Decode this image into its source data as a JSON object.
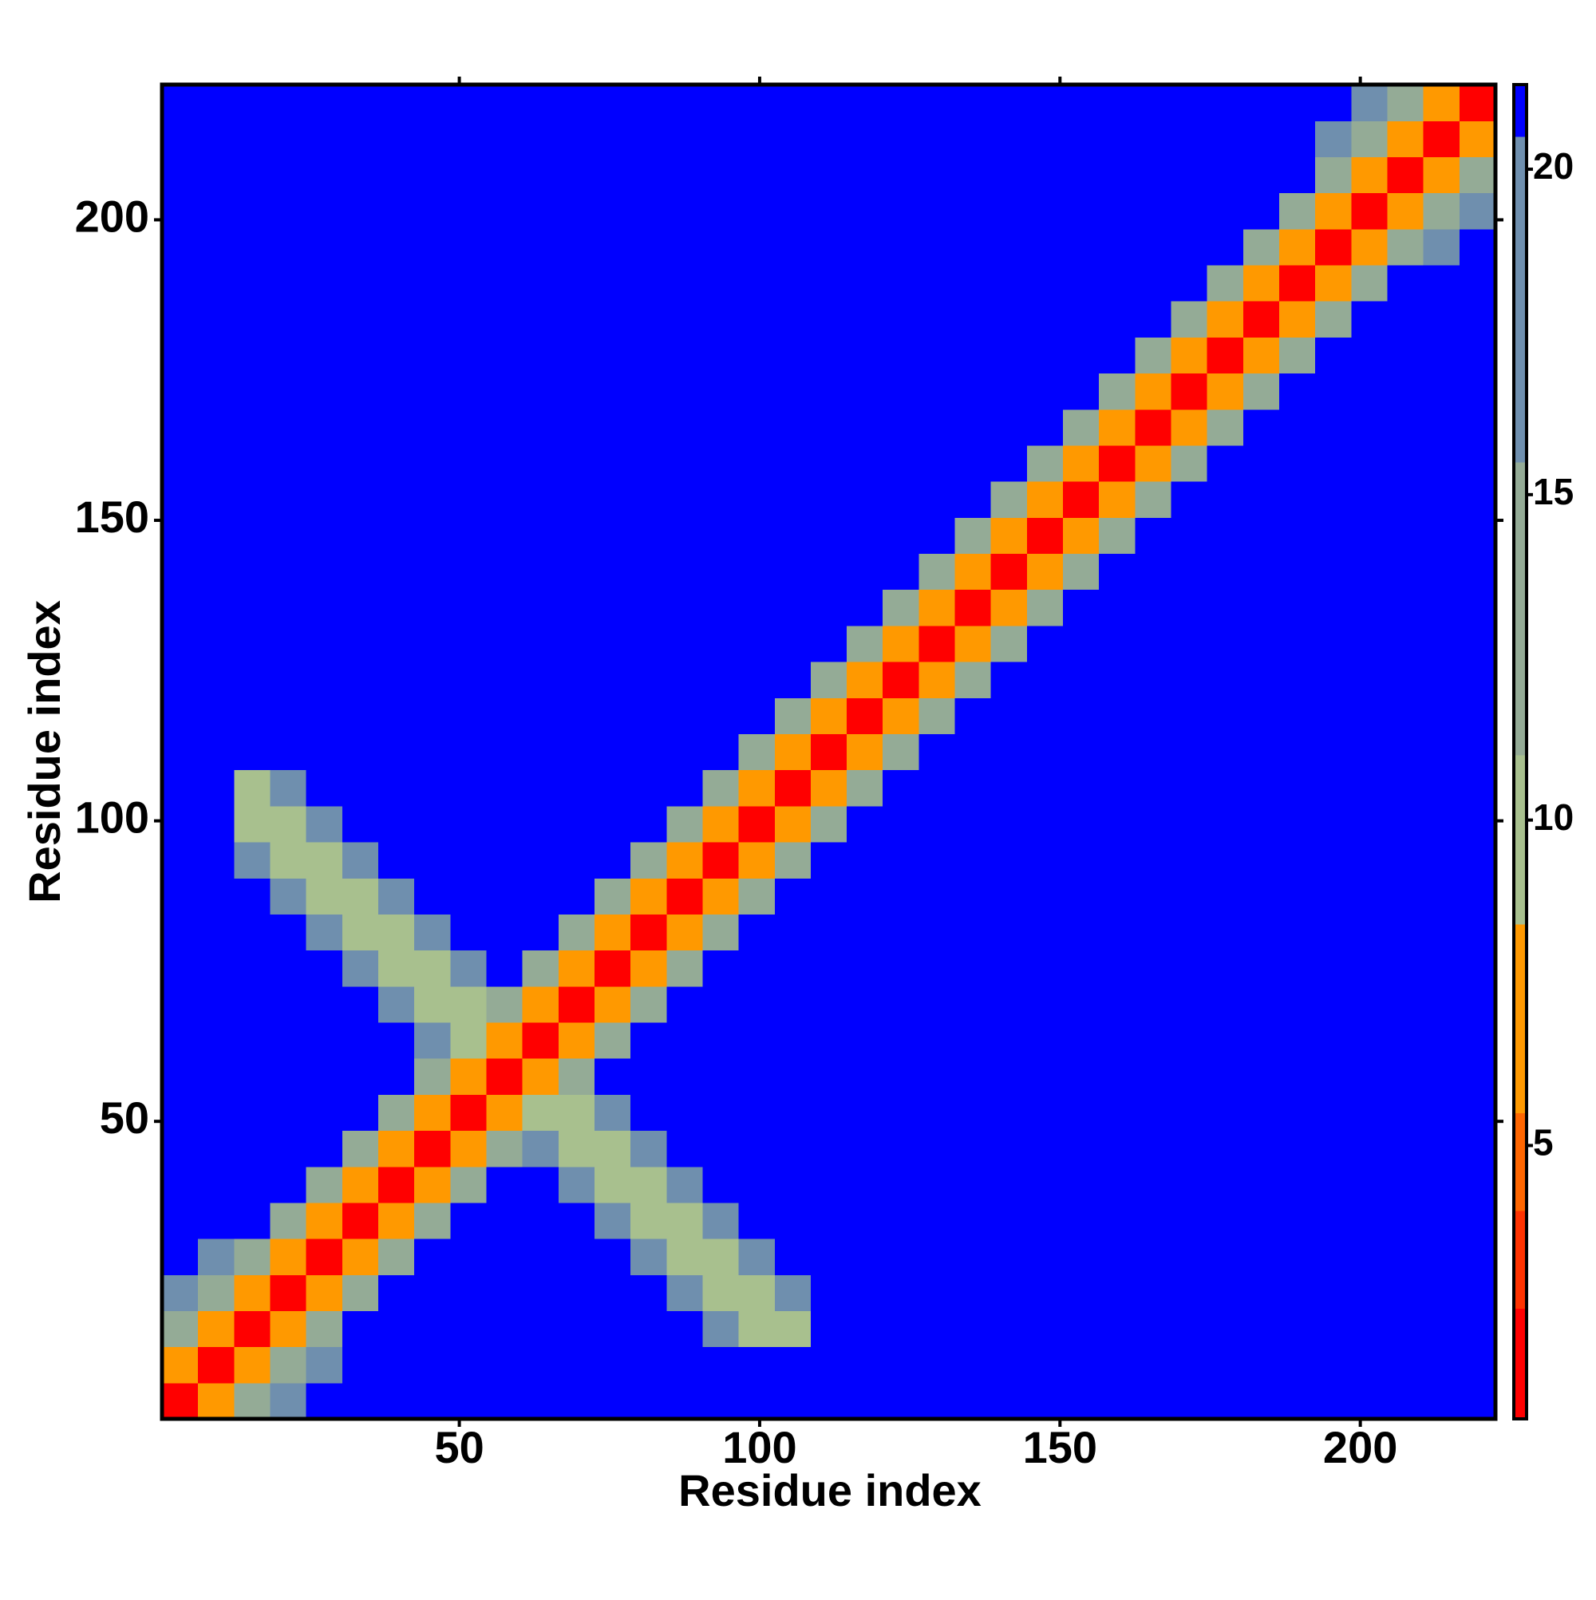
{
  "chart_data": {
    "type": "heatmap",
    "x_label": "Residue index",
    "y_label": "Residue index",
    "xlim": [
      0.5,
      222.5
    ],
    "ylim": [
      0.5,
      222.5
    ],
    "xticks": [
      50,
      100,
      150,
      200
    ],
    "yticks": [
      50,
      100,
      150,
      200
    ],
    "xbins": [
      0.5,
      6.5,
      12.5,
      18.5,
      24.5,
      30.5,
      36.5,
      42.5,
      48.5,
      54.5,
      60.5,
      66.5,
      72.5,
      78.5,
      84.5,
      90.5,
      96.5,
      102.5,
      108.5,
      114.5,
      120.5,
      126.5,
      132.5,
      138.5,
      144.5,
      150.5,
      156.5,
      162.5,
      168.5,
      174.5,
      180.5,
      186.5,
      192.5,
      198.5,
      204.5,
      210.5,
      216.5,
      222.5
    ],
    "ybins": [
      0.5,
      6.5,
      12.5,
      18.5,
      24.5,
      30.5,
      36.5,
      42.5,
      48.5,
      54.5,
      60.5,
      66.5,
      72.5,
      78.5,
      84.5,
      90.5,
      96.5,
      102.5,
      108.5,
      114.5,
      120.5,
      126.5,
      132.5,
      138.5,
      144.5,
      150.5,
      156.5,
      162.5,
      168.5,
      174.5,
      180.5,
      186.5,
      192.5,
      198.5,
      204.5,
      210.5,
      216.5,
      222.5
    ],
    "zlim": [
      0.8,
      21.3
    ],
    "colorbar_ticks": [
      5,
      10,
      15,
      20
    ],
    "levels": [
      0.8,
      2.5,
      4,
      5.5,
      8.4,
      11,
      15.5,
      20.5,
      21.3
    ],
    "level_colors": [
      "#ff0000",
      "#ff3300",
      "#ff6600",
      "#ff9900",
      "#a8c08e",
      "#94ab96",
      "#6f8fae",
      "#0000ff"
    ],
    "z": [
      [
        2,
        7,
        12,
        17,
        21,
        21,
        21,
        21,
        21,
        21,
        21,
        21,
        21,
        21,
        21,
        21,
        21,
        21,
        21,
        21,
        21,
        21,
        21,
        21,
        21,
        21,
        21,
        21,
        21,
        21,
        21,
        21,
        21,
        21,
        21,
        21,
        21
      ],
      [
        7,
        2,
        7,
        12,
        17,
        21,
        21,
        21,
        21,
        21,
        21,
        21,
        21,
        21,
        21,
        21,
        21,
        21,
        21,
        21,
        21,
        21,
        21,
        21,
        21,
        21,
        21,
        21,
        21,
        21,
        21,
        21,
        21,
        21,
        21,
        21,
        21
      ],
      [
        12,
        7,
        2,
        7,
        12,
        21,
        21,
        21,
        21,
        21,
        21,
        21,
        21,
        21,
        21,
        17,
        10,
        10,
        21,
        21,
        21,
        21,
        21,
        21,
        21,
        21,
        21,
        21,
        21,
        21,
        21,
        21,
        21,
        21,
        21,
        21,
        21
      ],
      [
        17,
        12,
        7,
        2,
        7,
        13,
        21,
        21,
        21,
        21,
        21,
        21,
        21,
        21,
        17,
        10,
        10,
        17,
        21,
        21,
        21,
        21,
        21,
        21,
        21,
        21,
        21,
        21,
        21,
        21,
        21,
        21,
        21,
        21,
        21,
        21,
        21
      ],
      [
        21,
        17,
        12,
        7,
        2,
        7,
        13,
        21,
        21,
        21,
        21,
        21,
        21,
        17,
        10,
        10,
        17,
        21,
        21,
        21,
        21,
        21,
        21,
        21,
        21,
        21,
        21,
        21,
        21,
        21,
        21,
        21,
        21,
        21,
        21,
        21,
        21
      ],
      [
        21,
        21,
        21,
        13,
        7,
        2,
        7,
        13,
        21,
        21,
        21,
        21,
        17,
        10,
        10,
        17,
        21,
        21,
        21,
        21,
        21,
        21,
        21,
        21,
        21,
        21,
        21,
        21,
        21,
        21,
        21,
        21,
        21,
        21,
        21,
        21,
        21
      ],
      [
        21,
        21,
        21,
        21,
        13,
        7,
        2,
        7,
        13,
        21,
        21,
        17,
        10,
        10,
        17,
        21,
        21,
        21,
        21,
        21,
        21,
        21,
        21,
        21,
        21,
        21,
        21,
        21,
        21,
        21,
        21,
        21,
        21,
        21,
        21,
        21,
        21
      ],
      [
        21,
        21,
        21,
        21,
        21,
        13,
        7,
        2,
        7,
        13,
        17,
        10,
        10,
        17,
        21,
        21,
        21,
        21,
        21,
        21,
        21,
        21,
        21,
        21,
        21,
        21,
        21,
        21,
        21,
        21,
        21,
        21,
        21,
        21,
        21,
        21,
        21
      ],
      [
        21,
        21,
        21,
        21,
        21,
        21,
        13,
        7,
        2,
        7,
        10,
        10,
        17,
        21,
        21,
        21,
        21,
        21,
        21,
        21,
        21,
        21,
        21,
        21,
        21,
        21,
        21,
        21,
        21,
        21,
        21,
        21,
        21,
        21,
        21,
        21,
        21
      ],
      [
        21,
        21,
        21,
        21,
        21,
        21,
        21,
        13,
        7,
        2,
        7,
        13,
        21,
        21,
        21,
        21,
        21,
        21,
        21,
        21,
        21,
        21,
        21,
        21,
        21,
        21,
        21,
        21,
        21,
        21,
        21,
        21,
        21,
        21,
        21,
        21,
        21
      ],
      [
        21,
        21,
        21,
        21,
        21,
        21,
        21,
        17,
        10,
        7,
        2,
        7,
        13,
        21,
        21,
        21,
        21,
        21,
        21,
        21,
        21,
        21,
        21,
        21,
        21,
        21,
        21,
        21,
        21,
        21,
        21,
        21,
        21,
        21,
        21,
        21,
        21
      ],
      [
        21,
        21,
        21,
        21,
        21,
        21,
        17,
        10,
        10,
        13,
        7,
        2,
        7,
        13,
        21,
        21,
        21,
        21,
        21,
        21,
        21,
        21,
        21,
        21,
        21,
        21,
        21,
        21,
        21,
        21,
        21,
        21,
        21,
        21,
        21,
        21,
        21
      ],
      [
        21,
        21,
        21,
        21,
        21,
        17,
        10,
        10,
        17,
        21,
        13,
        7,
        2,
        7,
        13,
        21,
        21,
        21,
        21,
        21,
        21,
        21,
        21,
        21,
        21,
        21,
        21,
        21,
        21,
        21,
        21,
        21,
        21,
        21,
        21,
        21,
        21
      ],
      [
        21,
        21,
        21,
        21,
        17,
        10,
        10,
        17,
        21,
        21,
        21,
        13,
        7,
        2,
        7,
        13,
        21,
        21,
        21,
        21,
        21,
        21,
        21,
        21,
        21,
        21,
        21,
        21,
        21,
        21,
        21,
        21,
        21,
        21,
        21,
        21,
        21
      ],
      [
        21,
        21,
        21,
        17,
        10,
        10,
        17,
        21,
        21,
        21,
        21,
        21,
        13,
        7,
        2,
        7,
        13,
        21,
        21,
        21,
        21,
        21,
        21,
        21,
        21,
        21,
        21,
        21,
        21,
        21,
        21,
        21,
        21,
        21,
        21,
        21,
        21
      ],
      [
        21,
        21,
        17,
        10,
        10,
        17,
        21,
        21,
        21,
        21,
        21,
        21,
        21,
        13,
        7,
        2,
        7,
        13,
        21,
        21,
        21,
        21,
        21,
        21,
        21,
        21,
        21,
        21,
        21,
        21,
        21,
        21,
        21,
        21,
        21,
        21,
        21
      ],
      [
        21,
        21,
        10,
        10,
        17,
        21,
        21,
        21,
        21,
        21,
        21,
        21,
        21,
        21,
        13,
        7,
        2,
        7,
        13,
        21,
        21,
        21,
        21,
        21,
        21,
        21,
        21,
        21,
        21,
        21,
        21,
        21,
        21,
        21,
        21,
        21,
        21
      ],
      [
        21,
        21,
        10,
        17,
        21,
        21,
        21,
        21,
        21,
        21,
        21,
        21,
        21,
        21,
        21,
        13,
        7,
        2,
        7,
        13,
        21,
        21,
        21,
        21,
        21,
        21,
        21,
        21,
        21,
        21,
        21,
        21,
        21,
        21,
        21,
        21,
        21
      ],
      [
        21,
        21,
        21,
        21,
        21,
        21,
        21,
        21,
        21,
        21,
        21,
        21,
        21,
        21,
        21,
        21,
        13,
        7,
        2,
        7,
        13,
        21,
        21,
        21,
        21,
        21,
        21,
        21,
        21,
        21,
        21,
        21,
        21,
        21,
        21,
        21,
        21
      ],
      [
        21,
        21,
        21,
        21,
        21,
        21,
        21,
        21,
        21,
        21,
        21,
        21,
        21,
        21,
        21,
        21,
        21,
        13,
        7,
        2,
        7,
        13,
        21,
        21,
        21,
        21,
        21,
        21,
        21,
        21,
        21,
        21,
        21,
        21,
        21,
        21,
        21
      ],
      [
        21,
        21,
        21,
        21,
        21,
        21,
        21,
        21,
        21,
        21,
        21,
        21,
        21,
        21,
        21,
        21,
        21,
        21,
        13,
        7,
        2,
        7,
        13,
        21,
        21,
        21,
        21,
        21,
        21,
        21,
        21,
        21,
        21,
        21,
        21,
        21,
        21
      ],
      [
        21,
        21,
        21,
        21,
        21,
        21,
        21,
        21,
        21,
        21,
        21,
        21,
        21,
        21,
        21,
        21,
        21,
        21,
        21,
        13,
        7,
        2,
        7,
        13,
        21,
        21,
        21,
        21,
        21,
        21,
        21,
        21,
        21,
        21,
        21,
        21,
        21
      ],
      [
        21,
        21,
        21,
        21,
        21,
        21,
        21,
        21,
        21,
        21,
        21,
        21,
        21,
        21,
        21,
        21,
        21,
        21,
        21,
        21,
        13,
        7,
        2,
        7,
        13,
        21,
        21,
        21,
        21,
        21,
        21,
        21,
        21,
        21,
        21,
        21,
        21
      ],
      [
        21,
        21,
        21,
        21,
        21,
        21,
        21,
        21,
        21,
        21,
        21,
        21,
        21,
        21,
        21,
        21,
        21,
        21,
        21,
        21,
        21,
        13,
        7,
        2,
        7,
        13,
        21,
        21,
        21,
        21,
        21,
        21,
        21,
        21,
        21,
        21,
        21
      ],
      [
        21,
        21,
        21,
        21,
        21,
        21,
        21,
        21,
        21,
        21,
        21,
        21,
        21,
        21,
        21,
        21,
        21,
        21,
        21,
        21,
        21,
        21,
        13,
        7,
        2,
        7,
        13,
        21,
        21,
        21,
        21,
        21,
        21,
        21,
        21,
        21,
        21
      ],
      [
        21,
        21,
        21,
        21,
        21,
        21,
        21,
        21,
        21,
        21,
        21,
        21,
        21,
        21,
        21,
        21,
        21,
        21,
        21,
        21,
        21,
        21,
        21,
        13,
        7,
        2,
        7,
        13,
        21,
        21,
        21,
        21,
        21,
        21,
        21,
        21,
        21
      ],
      [
        21,
        21,
        21,
        21,
        21,
        21,
        21,
        21,
        21,
        21,
        21,
        21,
        21,
        21,
        21,
        21,
        21,
        21,
        21,
        21,
        21,
        21,
        21,
        21,
        13,
        7,
        2,
        7,
        13,
        21,
        21,
        21,
        21,
        21,
        21,
        21,
        21
      ],
      [
        21,
        21,
        21,
        21,
        21,
        21,
        21,
        21,
        21,
        21,
        21,
        21,
        21,
        21,
        21,
        21,
        21,
        21,
        21,
        21,
        21,
        21,
        21,
        21,
        21,
        13,
        7,
        2,
        7,
        13,
        21,
        21,
        21,
        21,
        21,
        21,
        21
      ],
      [
        21,
        21,
        21,
        21,
        21,
        21,
        21,
        21,
        21,
        21,
        21,
        21,
        21,
        21,
        21,
        21,
        21,
        21,
        21,
        21,
        21,
        21,
        21,
        21,
        21,
        21,
        13,
        7,
        2,
        7,
        13,
        21,
        21,
        21,
        21,
        21,
        21
      ],
      [
        21,
        21,
        21,
        21,
        21,
        21,
        21,
        21,
        21,
        21,
        21,
        21,
        21,
        21,
        21,
        21,
        21,
        21,
        21,
        21,
        21,
        21,
        21,
        21,
        21,
        21,
        21,
        13,
        7,
        2,
        7,
        13,
        21,
        21,
        21,
        21,
        21
      ],
      [
        21,
        21,
        21,
        21,
        21,
        21,
        21,
        21,
        21,
        21,
        21,
        21,
        21,
        21,
        21,
        21,
        21,
        21,
        21,
        21,
        21,
        21,
        21,
        21,
        21,
        21,
        21,
        21,
        13,
        7,
        2,
        7,
        13,
        21,
        21,
        21,
        21
      ],
      [
        21,
        21,
        21,
        21,
        21,
        21,
        21,
        21,
        21,
        21,
        21,
        21,
        21,
        21,
        21,
        21,
        21,
        21,
        21,
        21,
        21,
        21,
        21,
        21,
        21,
        21,
        21,
        21,
        21,
        13,
        7,
        2,
        7,
        13,
        21,
        21,
        21
      ],
      [
        21,
        21,
        21,
        21,
        21,
        21,
        21,
        21,
        21,
        21,
        21,
        21,
        21,
        21,
        21,
        21,
        21,
        21,
        21,
        21,
        21,
        21,
        21,
        21,
        21,
        21,
        21,
        21,
        21,
        21,
        13,
        7,
        2,
        7,
        12,
        17,
        21
      ],
      [
        21,
        21,
        21,
        21,
        21,
        21,
        21,
        21,
        21,
        21,
        21,
        21,
        21,
        21,
        21,
        21,
        21,
        21,
        21,
        21,
        21,
        21,
        21,
        21,
        21,
        21,
        21,
        21,
        21,
        21,
        21,
        13,
        7,
        2,
        7,
        12,
        17
      ],
      [
        21,
        21,
        21,
        21,
        21,
        21,
        21,
        21,
        21,
        21,
        21,
        21,
        21,
        21,
        21,
        21,
        21,
        21,
        21,
        21,
        21,
        21,
        21,
        21,
        21,
        21,
        21,
        21,
        21,
        21,
        21,
        21,
        12,
        7,
        2,
        7,
        12
      ],
      [
        21,
        21,
        21,
        21,
        21,
        21,
        21,
        21,
        21,
        21,
        21,
        21,
        21,
        21,
        21,
        21,
        21,
        21,
        21,
        21,
        21,
        21,
        21,
        21,
        21,
        21,
        21,
        21,
        21,
        21,
        21,
        21,
        17,
        12,
        7,
        2,
        7
      ],
      [
        21,
        21,
        21,
        21,
        21,
        21,
        21,
        21,
        21,
        21,
        21,
        21,
        21,
        21,
        21,
        21,
        21,
        21,
        21,
        21,
        21,
        21,
        21,
        21,
        21,
        21,
        21,
        21,
        21,
        21,
        21,
        21,
        21,
        17,
        12,
        7,
        2
      ]
    ]
  }
}
